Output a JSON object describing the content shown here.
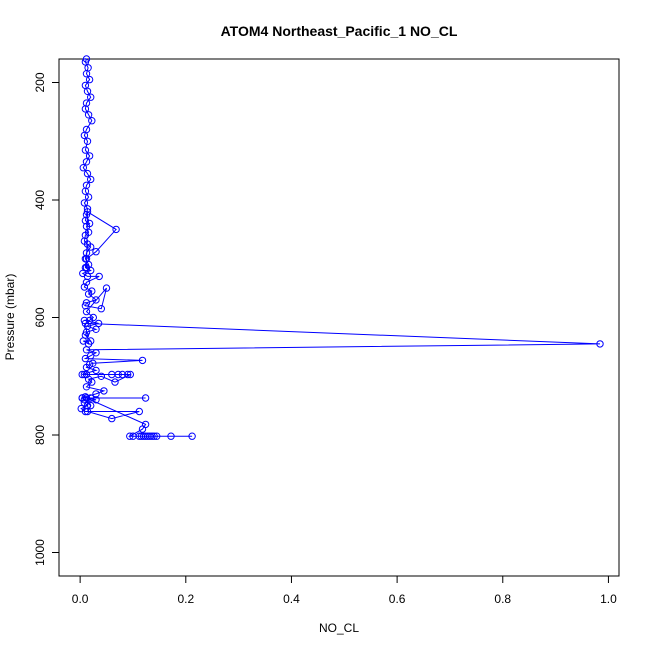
{
  "chart_data": {
    "type": "line",
    "title": "ATOM4 Northeast_Pacific_1 NO_CL",
    "xlabel": "NO_CL",
    "ylabel": "Pressure (mbar)",
    "xlim": [
      -0.04,
      1.02
    ],
    "ylim": [
      1040,
      160
    ],
    "y_reversed": true,
    "x_ticks": [
      0.0,
      0.2,
      0.4,
      0.6,
      0.8,
      1.0
    ],
    "x_tick_labels": [
      "0.0",
      "0.2",
      "0.4",
      "0.6",
      "0.8",
      "1.0"
    ],
    "y_ticks": [
      200,
      400,
      600,
      800,
      1000
    ],
    "y_tick_labels": [
      "200",
      "400",
      "600",
      "800",
      "1000"
    ],
    "grid": false,
    "series_color": "#0000ff",
    "series": [
      {
        "x": [
          0.012,
          0.01,
          0.015,
          0.012,
          0.018,
          0.01,
          0.014,
          0.02,
          0.012,
          0.01,
          0.016,
          0.022,
          0.012,
          0.008,
          0.014,
          0.01,
          0.018,
          0.012,
          0.006,
          0.014,
          0.02,
          0.012,
          0.01,
          0.016,
          0.008,
          0.014,
          0.012,
          0.01,
          0.018,
          0.012,
          0.016,
          0.01,
          0.008,
          0.014,
          0.02,
          0.012,
          0.01,
          0.016,
          0.012,
          0.014,
          0.068,
          0.03,
          0.012,
          0.01,
          0.02,
          0.005,
          0.014,
          0.036,
          0.012,
          0.008,
          0.022,
          0.016,
          0.03,
          0.012,
          0.01,
          0.04,
          0.05,
          0.012,
          0.025,
          0.018,
          0.008,
          0.035,
          0.014,
          0.03,
          0.012,
          0.01,
          0.02,
          0.006,
          0.016,
          0.01,
          0.984,
          0.012,
          0.03,
          0.02,
          0.01,
          0.118,
          0.024,
          0.018,
          0.012,
          0.03,
          0.004,
          0.008,
          0.012,
          0.06,
          0.072,
          0.08,
          0.09,
          0.095,
          0.066,
          0.04,
          0.016,
          0.022,
          0.012,
          0.045,
          0.03,
          0.01,
          0.004,
          0.02,
          0.124,
          0.012,
          0.03,
          0.008,
          0.014,
          0.002,
          0.01,
          0.112,
          0.06,
          0.014,
          0.02,
          0.008,
          0.004,
          0.012,
          0.124,
          0.118,
          0.094,
          0.1,
          0.112,
          0.116,
          0.12,
          0.124,
          0.128,
          0.132,
          0.136,
          0.14,
          0.145,
          0.172,
          0.212
        ],
        "y": [
          160,
          165,
          175,
          185,
          195,
          205,
          215,
          225,
          235,
          245,
          255,
          265,
          280,
          290,
          300,
          315,
          325,
          335,
          345,
          355,
          365,
          375,
          385,
          395,
          405,
          415,
          425,
          435,
          440,
          445,
          455,
          460,
          470,
          475,
          480,
          490,
          500,
          510,
          515,
          420,
          450,
          488,
          500,
          515,
          520,
          525,
          530,
          530,
          540,
          548,
          555,
          560,
          570,
          575,
          580,
          585,
          550,
          590,
          600,
          605,
          605,
          610,
          615,
          620,
          625,
          630,
          640,
          640,
          645,
          610,
          645,
          655,
          660,
          665,
          670,
          673,
          678,
          680,
          685,
          690,
          697,
          697,
          697,
          697,
          697,
          697,
          697,
          697,
          710,
          700,
          705,
          710,
          718,
          725,
          730,
          735,
          737,
          737,
          737,
          737,
          740,
          745,
          750,
          755,
          760,
          760,
          772,
          760,
          750,
          740,
          737,
          737,
          782,
          790,
          802,
          802,
          802,
          802,
          802,
          802,
          802,
          802,
          802,
          802,
          802,
          802,
          802
        ]
      }
    ]
  }
}
